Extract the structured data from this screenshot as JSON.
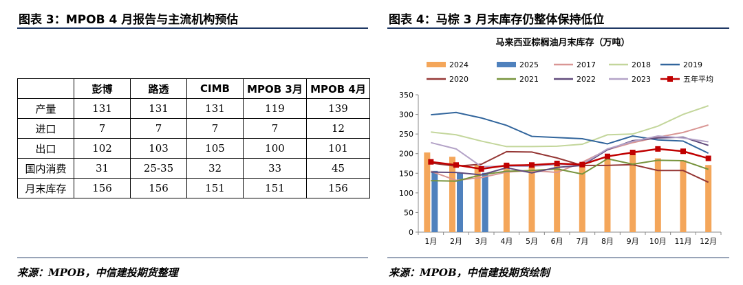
{
  "left": {
    "title": "图表 3：MPOB 4 月报告与主流机构预估",
    "source": "来源：MPOB，中信建投期货整理",
    "table": {
      "headers": [
        "",
        "彭博",
        "路透",
        "CIMB",
        "MPOB 3月",
        "MPOB 4月"
      ],
      "rows": [
        [
          "产量",
          "131",
          "131",
          "131",
          "119",
          "139"
        ],
        [
          "进口",
          "7",
          "7",
          "7",
          "7",
          "12"
        ],
        [
          "出口",
          "102",
          "103",
          "105",
          "100",
          "101"
        ],
        [
          "国内消费",
          "31",
          "25-35",
          "32",
          "33",
          "45"
        ],
        [
          "月末库存",
          "156",
          "156",
          "151",
          "151",
          "156"
        ]
      ]
    }
  },
  "right": {
    "title": "图表 4：马棕 3 月末库存仍整体保持低位",
    "source": "来源：MPOB，中信建投期货绘制"
  },
  "chart_data": {
    "type": "bar+line",
    "title": "马来西亚棕榈油月末库存（万吨）",
    "categories": [
      "1月",
      "2月",
      "3月",
      "4月",
      "5月",
      "6月",
      "7月",
      "8月",
      "9月",
      "10月",
      "11月",
      "12月"
    ],
    "ylim": [
      0,
      350
    ],
    "yticks": [
      0,
      50,
      100,
      150,
      200,
      250,
      300,
      350
    ],
    "legend_position": "top",
    "bar_series": [
      {
        "name": "2024",
        "color": "#f4a65a",
        "values": [
          203,
          192,
          171,
          174,
          173,
          173,
          173,
          188,
          201,
          188,
          183,
          171
        ]
      },
      {
        "name": "2025",
        "color": "#4f81bd",
        "values": [
          156,
          151,
          151,
          null,
          null,
          null,
          null,
          null,
          null,
          null,
          null,
          null
        ]
      }
    ],
    "line_series": [
      {
        "name": "2017",
        "color": "#d99694",
        "values": [
          155,
          132,
          139,
          153,
          157,
          152,
          178,
          210,
          228,
          242,
          254,
          273
        ]
      },
      {
        "name": "2018",
        "color": "#c3d69b",
        "values": [
          255,
          248,
          232,
          218,
          218,
          219,
          224,
          248,
          250,
          270,
          300,
          322
        ]
      },
      {
        "name": "2019",
        "color": "#31659c",
        "values": [
          299,
          305,
          291,
          272,
          244,
          241,
          238,
          225,
          245,
          235,
          232,
          201
        ]
      },
      {
        "name": "2020",
        "color": "#953735",
        "values": [
          176,
          168,
          173,
          205,
          204,
          189,
          170,
          170,
          172,
          157,
          157,
          127
        ]
      },
      {
        "name": "2021",
        "color": "#77933c",
        "values": [
          131,
          130,
          146,
          155,
          157,
          161,
          148,
          187,
          173,
          183,
          182,
          160
        ]
      },
      {
        "name": "2022",
        "color": "#604a7b",
        "values": [
          153,
          152,
          146,
          164,
          151,
          165,
          170,
          210,
          233,
          240,
          242,
          221
        ]
      },
      {
        "name": "2023",
        "color": "#b3a2c7",
        "values": [
          228,
          212,
          167,
          168,
          168,
          172,
          173,
          212,
          231,
          245,
          240,
          230
        ]
      },
      {
        "name": "五年平均",
        "color": "#c00000",
        "marker": true,
        "values": [
          179,
          171,
          161,
          170,
          171,
          175,
          172,
          193,
          203,
          212,
          206,
          188
        ]
      }
    ]
  }
}
